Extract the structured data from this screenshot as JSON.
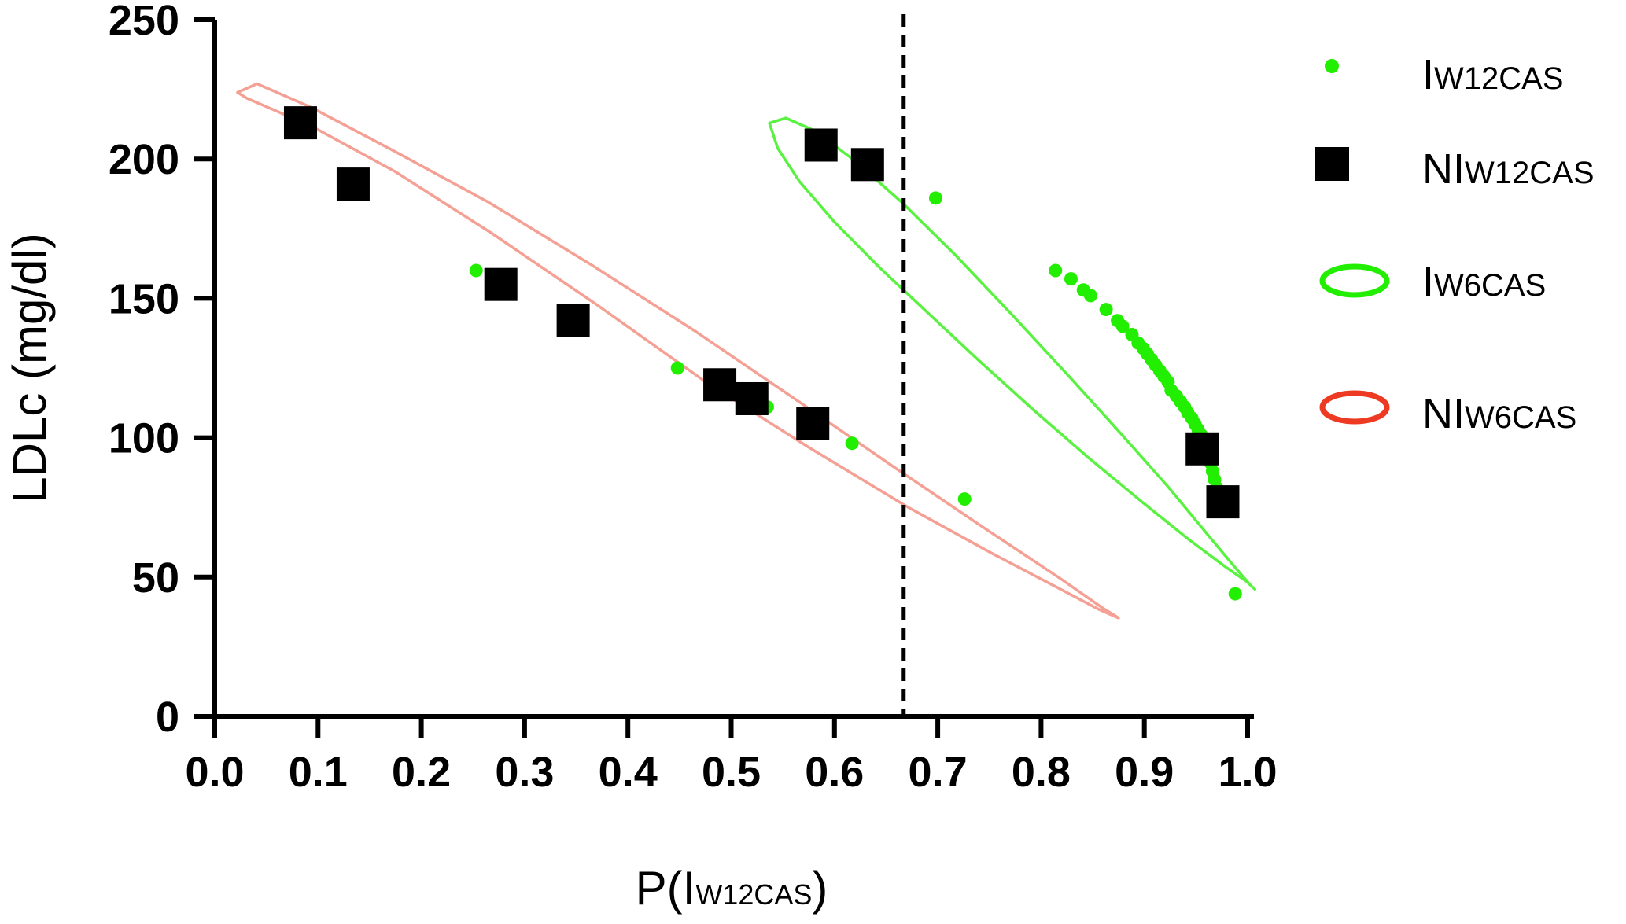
{
  "chart_data": {
    "type": "scatter",
    "xlabel": {
      "main": "P(I",
      "sub": "W12CAS",
      "close": ")"
    },
    "ylabel": "LDLc (mg/dl)",
    "xlim": [
      0,
      1
    ],
    "ylim": [
      0,
      250
    ],
    "x_ticks": [
      "0.0",
      "0.1",
      "0.2",
      "0.3",
      "0.4",
      "0.5",
      "0.6",
      "0.7",
      "0.8",
      "0.9",
      "1.0"
    ],
    "y_ticks": [
      "0",
      "50",
      "100",
      "150",
      "200",
      "250"
    ],
    "grid": false,
    "legend_position": "right",
    "threshold_x": 0.667,
    "series": [
      {
        "name": {
          "main": "I",
          "sub": "W12CAS"
        },
        "marker": "circle",
        "color": "#22ee00",
        "points": [
          [
            0.253,
            160
          ],
          [
            0.448,
            125
          ],
          [
            0.535,
            111
          ],
          [
            0.617,
            98
          ],
          [
            0.698,
            186
          ],
          [
            0.726,
            78
          ],
          [
            0.814,
            160
          ],
          [
            0.829,
            157
          ],
          [
            0.841,
            153
          ],
          [
            0.848,
            151
          ],
          [
            0.863,
            146
          ],
          [
            0.874,
            142
          ],
          [
            0.879,
            140
          ],
          [
            0.888,
            137
          ],
          [
            0.894,
            134
          ],
          [
            0.899,
            132
          ],
          [
            0.903,
            130
          ],
          [
            0.907,
            128
          ],
          [
            0.911,
            126
          ],
          [
            0.915,
            124
          ],
          [
            0.919,
            122
          ],
          [
            0.923,
            120
          ],
          [
            0.926,
            117
          ],
          [
            0.931,
            115
          ],
          [
            0.935,
            113
          ],
          [
            0.939,
            111
          ],
          [
            0.942,
            109
          ],
          [
            0.946,
            107
          ],
          [
            0.949,
            105
          ],
          [
            0.952,
            103
          ],
          [
            0.955,
            101
          ],
          [
            0.959,
            99
          ],
          [
            0.962,
            95
          ],
          [
            0.964,
            91
          ],
          [
            0.966,
            88
          ],
          [
            0.968,
            85
          ],
          [
            0.97,
            82
          ],
          [
            0.972,
            80
          ],
          [
            0.974,
            78
          ],
          [
            0.988,
            44
          ]
        ]
      },
      {
        "name": {
          "main": "NI",
          "sub": "W12CAS"
        },
        "marker": "square",
        "color": "#000000",
        "points": [
          [
            0.083,
            213
          ],
          [
            0.134,
            191
          ],
          [
            0.277,
            155
          ],
          [
            0.347,
            142
          ],
          [
            0.489,
            119
          ],
          [
            0.52,
            114
          ],
          [
            0.579,
            105
          ],
          [
            0.587,
            205
          ],
          [
            0.632,
            198
          ],
          [
            0.956,
            96
          ],
          [
            0.976,
            77
          ]
        ]
      }
    ],
    "ellipses": [
      {
        "name": {
          "main": "I",
          "sub": "W6CAS"
        },
        "color": "#22ee00",
        "center": [
          0.815,
          130.5
        ],
        "semi_axes": [
          0.51,
          44
        ],
        "points": [
          [
            0.537,
            212.9
          ],
          [
            0.553,
            214.7
          ],
          [
            0.581,
            210.1
          ],
          [
            0.619,
            199.6
          ],
          [
            0.666,
            184.2
          ],
          [
            0.718,
            165.2
          ],
          [
            0.772,
            144.1
          ],
          [
            0.826,
            122.5
          ],
          [
            0.877,
            101.6
          ],
          [
            0.923,
            82.4
          ],
          [
            0.96,
            65.8
          ],
          [
            0.988,
            53.4
          ],
          [
            1.003,
            47.0
          ],
          [
            1.007,
            45.6
          ],
          [
            0.999,
            48.4
          ],
          [
            0.978,
            53.8
          ],
          [
            0.943,
            63.5
          ],
          [
            0.898,
            76.9
          ],
          [
            0.846,
            92.8
          ],
          [
            0.792,
            110.2
          ],
          [
            0.739,
            128.0
          ],
          [
            0.689,
            145.3
          ],
          [
            0.643,
            161.3
          ],
          [
            0.6,
            177.4
          ],
          [
            0.566,
            192.0
          ],
          [
            0.545,
            203.9
          ],
          [
            0.537,
            212.9
          ]
        ]
      },
      {
        "name": {
          "main": "NI",
          "sub": "W6CAS"
        },
        "color": "#f08070",
        "center": [
          0.448,
          147.5
        ],
        "semi_axes": [
          0.44,
          82
        ],
        "points": [
          [
            0.022,
            223.9
          ],
          [
            0.031,
            221.8
          ],
          [
            0.094,
            211.7
          ],
          [
            0.175,
            195.4
          ],
          [
            0.268,
            173.4
          ],
          [
            0.37,
            147.7
          ],
          [
            0.475,
            120.1
          ],
          [
            0.577,
            96.1
          ],
          [
            0.671,
            75.1
          ],
          [
            0.752,
            58.6
          ],
          [
            0.815,
            46.4
          ],
          [
            0.856,
            38.4
          ],
          [
            0.875,
            35.3
          ],
          [
            0.872,
            36.1
          ],
          [
            0.86,
            38.8
          ],
          [
            0.819,
            49.4
          ],
          [
            0.745,
            67.6
          ],
          [
            0.661,
            88.6
          ],
          [
            0.566,
            112.8
          ],
          [
            0.466,
            138.0
          ],
          [
            0.364,
            162.2
          ],
          [
            0.265,
            184.5
          ],
          [
            0.172,
            203.2
          ],
          [
            0.093,
            218.6
          ],
          [
            0.041,
            227.0
          ],
          [
            0.022,
            223.9
          ]
        ]
      }
    ]
  }
}
